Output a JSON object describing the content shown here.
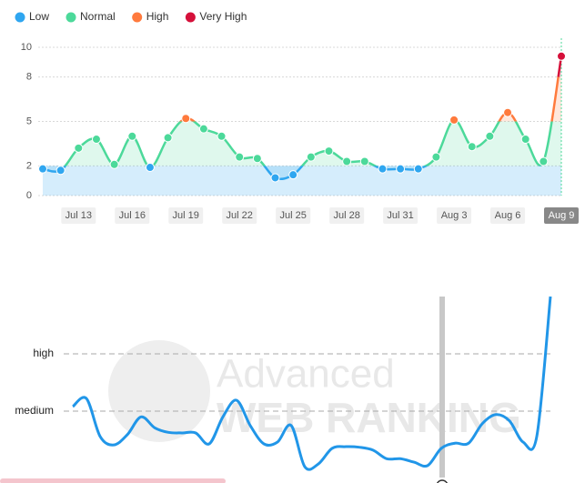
{
  "chart_data": [
    {
      "type": "line",
      "categories": [
        null,
        null,
        "Jul 13",
        null,
        null,
        "Jul 16",
        null,
        null,
        "Jul 19",
        null,
        null,
        "Jul 22",
        null,
        null,
        "Jul 25",
        null,
        null,
        "Jul 28",
        null,
        null,
        "Jul 31",
        null,
        null,
        "Aug 3",
        null,
        null,
        "Aug 6",
        null,
        null,
        "Aug 9"
      ],
      "series": [
        {
          "values": [
            1.8,
            1.7,
            3.2,
            3.8,
            2.1,
            4.0,
            1.9,
            3.9,
            5.2,
            4.5,
            4.0,
            2.6,
            2.5,
            1.2,
            1.4,
            2.6,
            3.0,
            2.3,
            2.3,
            1.8,
            1.8,
            1.8,
            2.6,
            5.1,
            3.3,
            4.0,
            5.6,
            3.8,
            2.3,
            9.4
          ]
        }
      ],
      "levels": [
        {
          "name": "Low",
          "color": "#2fa6f0",
          "range": [
            0,
            2
          ]
        },
        {
          "name": "Normal",
          "color": "#4cd99a",
          "range": [
            2,
            5
          ]
        },
        {
          "name": "High",
          "color": "#ff7a3d",
          "range": [
            5,
            8
          ]
        },
        {
          "name": "Very High",
          "color": "#d5103a",
          "range": [
            8,
            10
          ]
        }
      ],
      "ylim": [
        0,
        10
      ],
      "yticks": [
        0,
        2,
        5,
        8,
        10
      ],
      "grid": true
    },
    {
      "type": "line",
      "series": [
        {
          "color": "#2196e8",
          "values": [
            1.08,
            1.22,
            0.56,
            0.41,
            0.59,
            0.9,
            0.71,
            0.63,
            0.62,
            0.62,
            0.43,
            0.9,
            1.19,
            0.75,
            0.43,
            0.46,
            0.75,
            0.03,
            0.08,
            0.35,
            0.38,
            0.37,
            0.32,
            0.17,
            0.17,
            0.11,
            0.05,
            0.35,
            0.44,
            0.44,
            0.78,
            0.94,
            0.83,
            0.46,
            0.56,
            3.0
          ]
        }
      ],
      "ylim": [
        0,
        3
      ],
      "yticks": [
        {
          "value": 1,
          "label": "medium"
        },
        {
          "value": 2,
          "label": "high"
        }
      ],
      "grid": true,
      "watermark": [
        "Advanced",
        "WEB RANKING"
      ]
    }
  ]
}
